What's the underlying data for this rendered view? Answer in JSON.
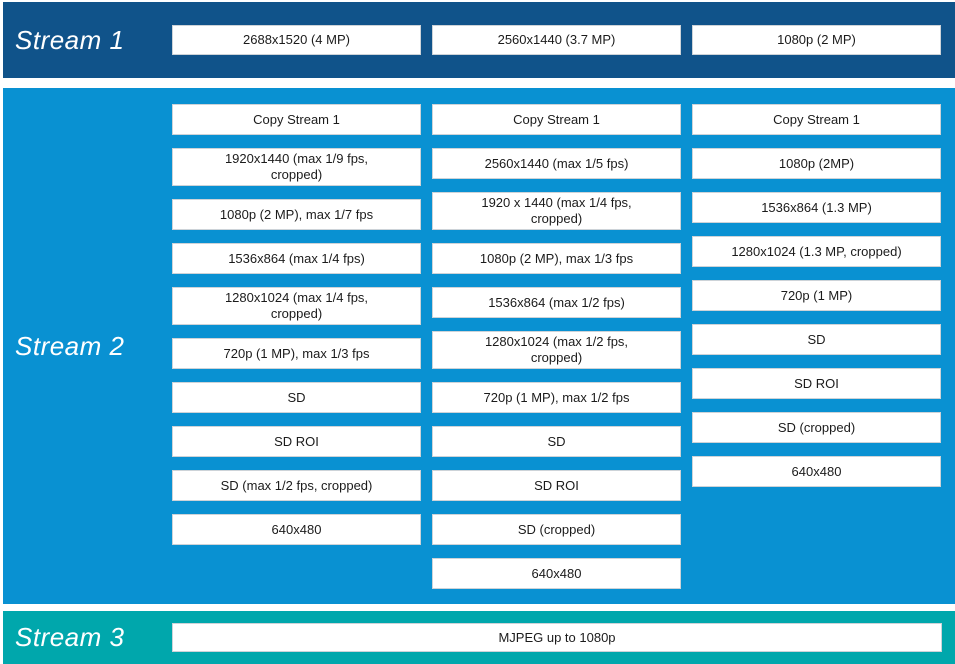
{
  "colors": {
    "stream1_bg": "#10538A",
    "stream2_bg": "#0991D2",
    "stream3_bg": "#00A7AC",
    "box_bg": "#FFFFFF",
    "box_border": "#CDD3D8",
    "box_text": "#1B1B1B",
    "label_text": "#FFFFFF",
    "page_bg": "#FFFFFF"
  },
  "streams": [
    {
      "label": "Stream 1",
      "boxes": [
        "2688x1520 (4 MP)",
        "2560x1440 (3.7 MP)",
        "1080p (2 MP)"
      ]
    },
    {
      "label": "Stream 2",
      "columns": [
        [
          "Copy Stream 1",
          "1920x1440 (max 1/9 fps, cropped)",
          "1080p (2 MP), max 1/7 fps",
          "1536x864 (max 1/4 fps)",
          "1280x1024 (max 1/4 fps, cropped)",
          "720p (1 MP), max 1/3 fps",
          "SD",
          "SD ROI",
          "SD (max 1/2 fps, cropped)",
          "640x480"
        ],
        [
          "Copy Stream 1",
          "2560x1440 (max 1/5 fps)",
          "1920 x 1440 (max 1/4 fps, cropped)",
          "1080p (2 MP), max 1/3 fps",
          "1536x864 (max 1/2 fps)",
          "1280x1024 (max 1/2 fps, cropped)",
          "720p (1 MP), max 1/2 fps",
          "SD",
          "SD ROI",
          "SD (cropped)",
          "640x480"
        ],
        [
          "Copy Stream 1",
          "1080p (2MP)",
          "1536x864 (1.3 MP)",
          "1280x1024 (1.3 MP, cropped)",
          "720p (1 MP)",
          "SD",
          "SD ROI",
          "SD (cropped)",
          "640x480"
        ]
      ]
    },
    {
      "label": "Stream 3",
      "boxes": [
        "MJPEG up to 1080p"
      ]
    }
  ]
}
